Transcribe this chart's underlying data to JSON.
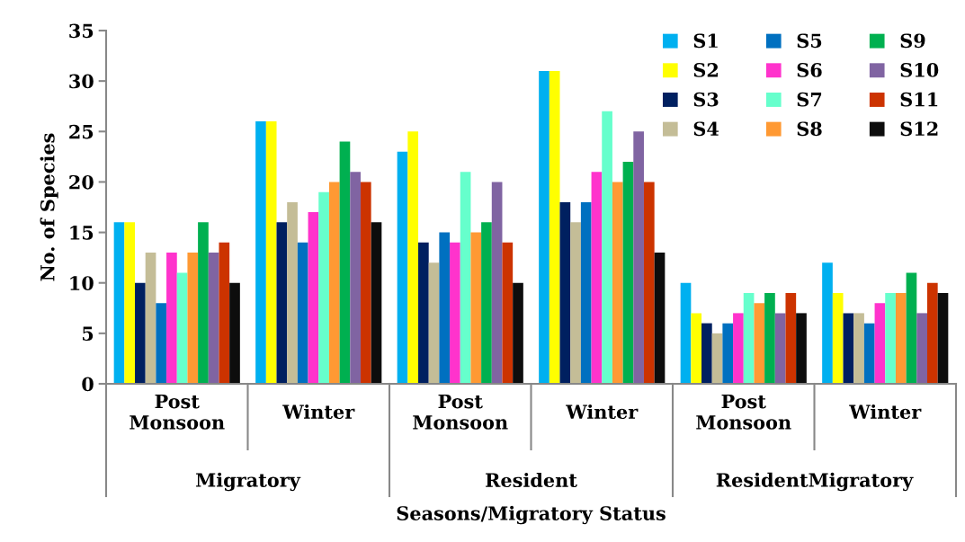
{
  "chart_data": {
    "type": "bar",
    "xlabel": "Seasons/Migratory Status",
    "ylabel": "No. of Species",
    "categories": [
      "Post\nMonsoon",
      "Winter",
      "Post\nMonsoon",
      "Winter",
      "Post\nMonsoon",
      "Winter"
    ],
    "annotations": [
      "Migratory",
      "Resident",
      "ResidentMigratory"
    ],
    "ylim": [
      0,
      35
    ],
    "yticks": [
      0,
      5,
      10,
      15,
      20,
      25,
      30,
      35
    ],
    "grid": false,
    "legend": "top right",
    "series": [
      {
        "name": "S1",
        "color": "#00b0f0",
        "values": [
          16,
          26,
          23,
          31,
          10,
          12
        ]
      },
      {
        "name": "S2",
        "color": "#ffff00",
        "values": [
          16,
          26,
          25,
          31,
          7,
          9
        ]
      },
      {
        "name": "S3",
        "color": "#002060",
        "values": [
          10,
          16,
          14,
          18,
          6,
          7
        ]
      },
      {
        "name": "S4",
        "color": "#c4bd97",
        "values": [
          13,
          18,
          12,
          16,
          5,
          7
        ]
      },
      {
        "name": "S5",
        "color": "#0070c0",
        "values": [
          8,
          14,
          15,
          18,
          6,
          6
        ]
      },
      {
        "name": "S6",
        "color": "#ff33cc",
        "values": [
          13,
          17,
          14,
          21,
          7,
          8
        ]
      },
      {
        "name": "S7",
        "color": "#66ffcc",
        "values": [
          11,
          19,
          21,
          27,
          9,
          9
        ]
      },
      {
        "name": "S8",
        "color": "#ff9933",
        "values": [
          13,
          20,
          15,
          20,
          8,
          9
        ]
      },
      {
        "name": "S9",
        "color": "#00b050",
        "values": [
          16,
          24,
          16,
          22,
          9,
          11
        ]
      },
      {
        "name": "S10",
        "color": "#8064a2",
        "values": [
          13,
          21,
          20,
          25,
          7,
          7
        ]
      },
      {
        "name": "S11",
        "color": "#cc3300",
        "values": [
          14,
          20,
          14,
          20,
          9,
          10
        ]
      },
      {
        "name": "S12",
        "color": "#0d0d0d",
        "values": [
          10,
          16,
          10,
          13,
          7,
          9
        ]
      }
    ]
  }
}
